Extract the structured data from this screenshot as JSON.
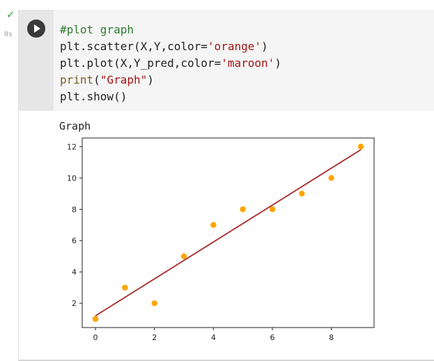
{
  "gutter": {
    "status_icon": "check-icon",
    "exec_time": "0s"
  },
  "cell": {
    "code_lines": [
      [
        {
          "t": "#plot graph",
          "c": "comment"
        }
      ],
      [
        {
          "t": "plt.scatter(X,Y,color=",
          "c": "plain"
        },
        {
          "t": "'orange'",
          "c": "str"
        },
        {
          "t": ")",
          "c": "plain"
        }
      ],
      [
        {
          "t": "plt.plot(X,Y_pred,color=",
          "c": "plain"
        },
        {
          "t": "'maroon'",
          "c": "str"
        },
        {
          "t": ")",
          "c": "plain"
        }
      ],
      [
        {
          "t": "print",
          "c": "fn"
        },
        {
          "t": "(",
          "c": "plain"
        },
        {
          "t": "\"Graph\"",
          "c": "str"
        },
        {
          "t": ")",
          "c": "plain"
        }
      ],
      [
        {
          "t": "plt.show()",
          "c": "plain"
        }
      ]
    ],
    "output_text": "Graph"
  },
  "colors": {
    "scatter": "#ffa500",
    "line": "#a52a2a",
    "check": "#3c9c3c"
  },
  "chart_data": {
    "type": "scatter",
    "xlim": [
      -0.45,
      9.45
    ],
    "ylim": [
      0.45,
      12.55
    ],
    "xticks": [
      0,
      2,
      4,
      6,
      8
    ],
    "yticks": [
      2,
      4,
      6,
      8,
      10,
      12
    ],
    "points": {
      "x": [
        0,
        1,
        2,
        3,
        4,
        5,
        6,
        7,
        8,
        9
      ],
      "y": [
        1,
        3,
        2,
        5,
        7,
        8,
        8,
        9,
        10,
        12
      ]
    },
    "line": {
      "x": [
        0,
        9
      ],
      "y": [
        1.2,
        11.8
      ]
    }
  }
}
